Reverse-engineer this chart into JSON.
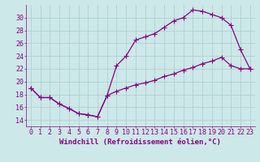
{
  "xlabel": "Windchill (Refroidissement éolien,°C)",
  "bg_color": "#cce8e8",
  "line_color": "#880088",
  "grid_color": "#aacccc",
  "xlim": [
    -0.5,
    23.5
  ],
  "ylim": [
    13.0,
    32.0
  ],
  "xticks": [
    0,
    1,
    2,
    3,
    4,
    5,
    6,
    7,
    8,
    9,
    10,
    11,
    12,
    13,
    14,
    15,
    16,
    17,
    18,
    19,
    20,
    21,
    22,
    23
  ],
  "yticks": [
    14,
    16,
    18,
    20,
    22,
    24,
    26,
    28,
    30
  ],
  "line1_x": [
    0,
    1,
    2,
    3,
    4,
    5,
    6,
    7,
    8,
    9,
    10,
    11,
    12,
    13,
    14,
    15,
    16,
    17,
    18,
    19,
    20,
    21,
    22,
    23
  ],
  "line1_y": [
    19.0,
    17.5,
    17.5,
    16.5,
    15.8,
    15.0,
    14.8,
    14.5,
    17.8,
    22.5,
    24.0,
    26.5,
    27.0,
    27.5,
    28.5,
    29.5,
    30.0,
    31.2,
    31.0,
    30.5,
    30.0,
    28.8,
    25.0,
    22.0
  ],
  "line2_x": [
    0,
    1,
    2,
    3,
    4,
    5,
    6,
    7,
    8,
    9,
    10,
    11,
    12,
    13,
    14,
    15,
    16,
    17,
    18,
    19,
    20,
    21,
    22,
    23
  ],
  "line2_y": [
    19.0,
    17.5,
    17.5,
    16.5,
    15.8,
    15.0,
    14.8,
    14.5,
    17.8,
    18.5,
    19.0,
    19.5,
    19.8,
    20.2,
    20.8,
    21.2,
    21.8,
    22.2,
    22.8,
    23.2,
    23.8,
    22.5,
    22.0,
    22.0
  ],
  "xlabel_fontsize": 6.5,
  "tick_fontsize": 6.0,
  "marker_size": 2.5,
  "line_width": 0.9
}
